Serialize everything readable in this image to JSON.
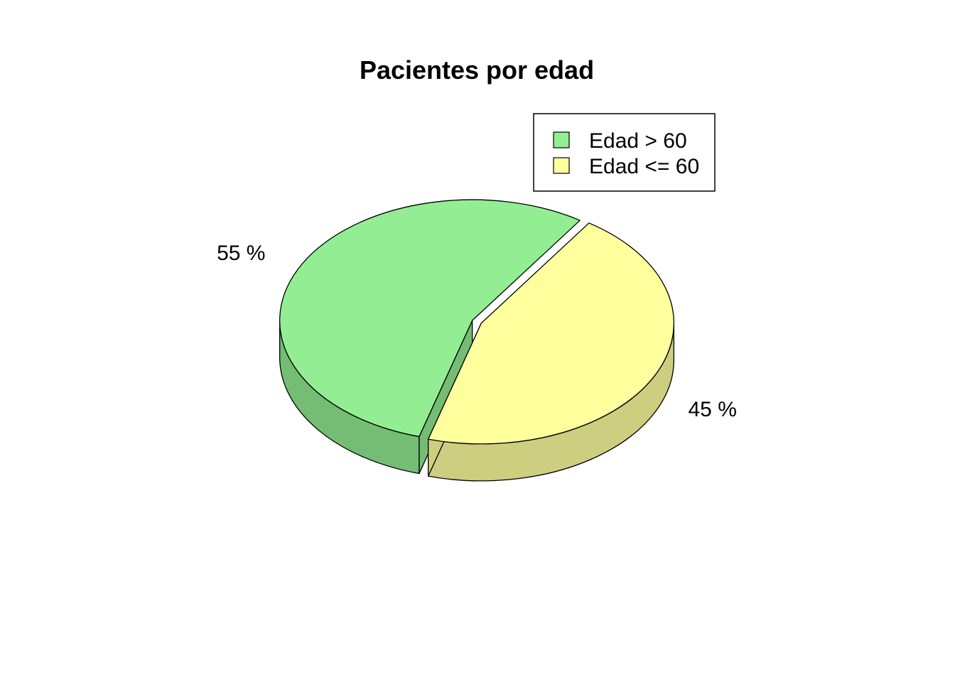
{
  "chart_data": {
    "type": "pie",
    "title": "Pacientes por edad",
    "categories": [
      "Edad > 60",
      "Edad <= 60"
    ],
    "values": [
      55,
      45
    ],
    "labels": [
      "55 %",
      "45 %"
    ],
    "colors": [
      "#93ee93",
      "#ffff9e"
    ],
    "side_colors": [
      "#75bd75",
      "#cece80"
    ],
    "legend_position": "top-right",
    "style": "3d-exploded"
  }
}
